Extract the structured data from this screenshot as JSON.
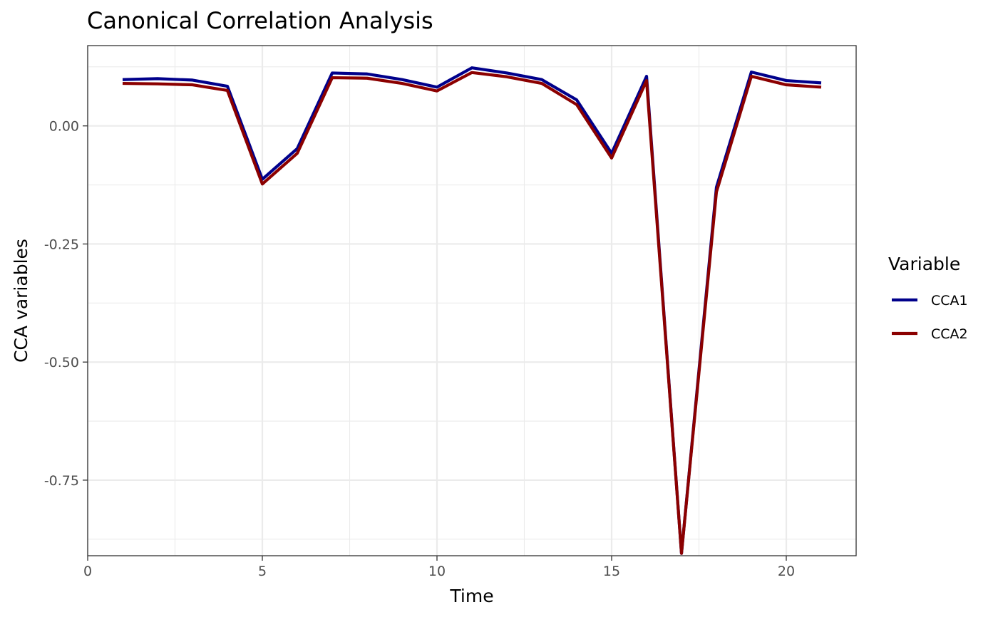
{
  "chart_data": {
    "type": "line",
    "title": "Canonical Correlation Analysis",
    "xlabel": "Time",
    "ylabel": "CCA  variables",
    "xlim": [
      0,
      22
    ],
    "ylim": [
      -0.91,
      0.17
    ],
    "x_ticks": [
      0,
      5,
      10,
      15,
      20
    ],
    "x_tick_labels": [
      "0",
      "5",
      "10",
      "15",
      "20"
    ],
    "y_ticks": [
      0.0,
      -0.25,
      -0.5,
      -0.75
    ],
    "y_tick_labels": [
      "0.00",
      "-0.25",
      "-0.50",
      "-0.75"
    ],
    "grid": true,
    "legend": {
      "title": "Variable",
      "position": "right"
    },
    "x": [
      1,
      2,
      3,
      4,
      5,
      6,
      7,
      8,
      9,
      10,
      11,
      12,
      13,
      14,
      15,
      16,
      17,
      18,
      19,
      20,
      21
    ],
    "series": [
      {
        "name": "CCA1",
        "color": "#00008b",
        "values": [
          0.098,
          0.1,
          0.097,
          0.084,
          -0.113,
          -0.048,
          0.112,
          0.11,
          0.098,
          0.082,
          0.123,
          0.112,
          0.098,
          0.055,
          -0.058,
          0.105,
          -0.905,
          -0.13,
          0.114,
          0.096,
          0.091
        ]
      },
      {
        "name": "CCA2",
        "color": "#8b0000",
        "values": [
          0.09,
          0.089,
          0.087,
          0.075,
          -0.123,
          -0.058,
          0.102,
          0.101,
          0.09,
          0.074,
          0.113,
          0.104,
          0.09,
          0.045,
          -0.068,
          0.096,
          -0.905,
          -0.14,
          0.105,
          0.087,
          0.082
        ]
      }
    ]
  }
}
